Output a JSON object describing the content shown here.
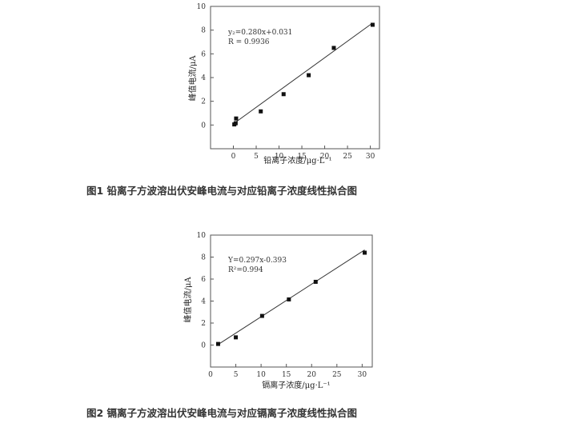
{
  "chart_data": [
    {
      "type": "scatter",
      "caption": "图1 铅离子方波溶出伏安峰电流与对应铅离子浓度线性拟合图",
      "xlabel": "铅离子浓度/μg·L⁻¹",
      "ylabel": "峰值电流/μA",
      "equation": "y₂=0.280x+0.031",
      "r_text": "R = 0.9936",
      "xlim": [
        -5,
        32
      ],
      "ylim": [
        -2,
        10
      ],
      "xticks": [
        0,
        5,
        10,
        15,
        20,
        25,
        30
      ],
      "yticks": [
        0,
        2,
        4,
        6,
        8,
        10
      ],
      "points": [
        {
          "x": 0.2,
          "y": 0.05
        },
        {
          "x": 0.5,
          "y": 0.15
        },
        {
          "x": 0.6,
          "y": 0.55
        },
        {
          "x": 6.0,
          "y": 1.15
        },
        {
          "x": 11.0,
          "y": 2.6
        },
        {
          "x": 16.5,
          "y": 4.2
        },
        {
          "x": 22.0,
          "y": 6.5
        },
        {
          "x": 30.5,
          "y": 8.45
        }
      ],
      "fit": {
        "x0": 0,
        "y0": 0.1,
        "x1": 30.5,
        "y1": 8.6
      }
    },
    {
      "type": "scatter",
      "caption": "图2 镉离子方波溶出伏安峰电流与对应镉离子浓度线性拟合图",
      "xlabel": "镉离子浓度/μg·L⁻¹",
      "ylabel": "峰值电流/μA",
      "equation": "Y=0.297x-0.393",
      "r_text": "R²=0.994",
      "xlim": [
        0,
        32
      ],
      "ylim": [
        -2,
        10
      ],
      "xticks": [
        0,
        5,
        10,
        15,
        20,
        25,
        30
      ],
      "yticks": [
        0,
        2,
        4,
        6,
        8,
        10
      ],
      "points": [
        {
          "x": 1.5,
          "y": 0.1
        },
        {
          "x": 5.0,
          "y": 0.7
        },
        {
          "x": 10.2,
          "y": 2.65
        },
        {
          "x": 15.5,
          "y": 4.15
        },
        {
          "x": 20.8,
          "y": 5.75
        },
        {
          "x": 30.5,
          "y": 8.4
        }
      ],
      "fit": {
        "x0": 1.5,
        "y0": 0.05,
        "x1": 30.5,
        "y1": 8.65
      }
    }
  ]
}
